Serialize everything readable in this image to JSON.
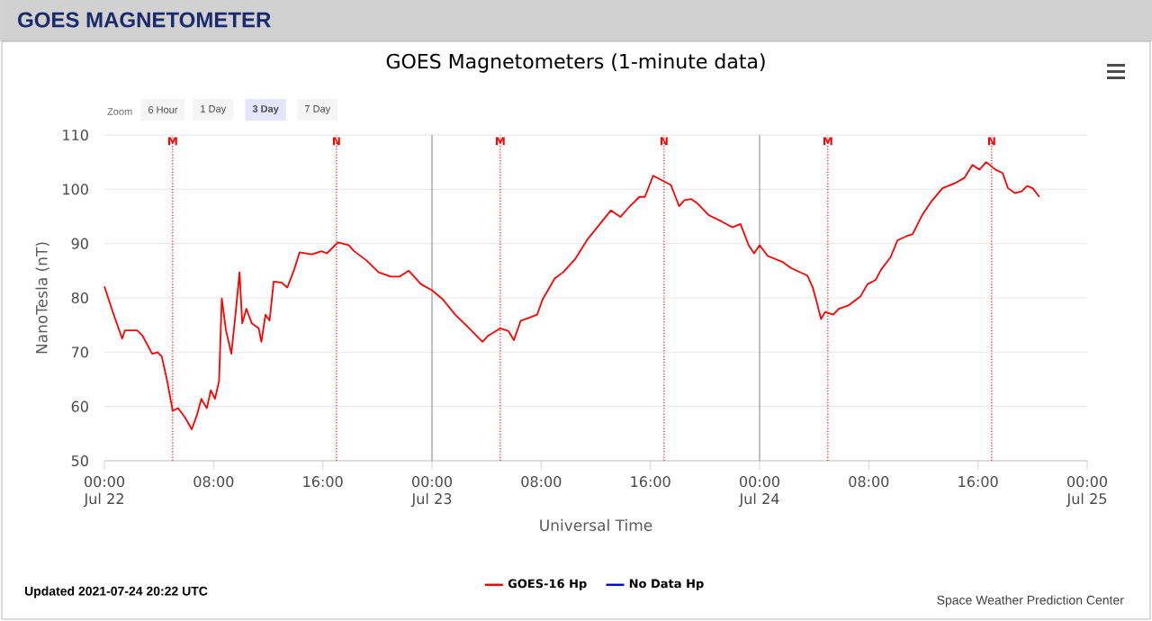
{
  "chart_data": {
    "type": "line",
    "title": "GOES MAGNETOMETER",
    "subtitle": "GOES Magnetometers (1-minute data)",
    "xlabel": "Universal Time",
    "ylabel": "NanoTesla (nT)",
    "xlim": [
      "2021-07-22T00:00",
      "2021-07-25T00:00"
    ],
    "ylim": [
      50,
      110
    ],
    "xticks": [
      {
        "value": "2021-07-22T00:00",
        "label": "00:00 Jul 22"
      },
      {
        "value": "2021-07-22T08:00",
        "label": "08:00"
      },
      {
        "value": "2021-07-22T16:00",
        "label": "16:00"
      },
      {
        "value": "2021-07-23T00:00",
        "label": "00:00 Jul 23"
      },
      {
        "value": "2021-07-23T08:00",
        "label": "08:00"
      },
      {
        "value": "2021-07-23T16:00",
        "label": "16:00"
      },
      {
        "value": "2021-07-24T00:00",
        "label": "00:00 Jul 24"
      },
      {
        "value": "2021-07-24T08:00",
        "label": "08:00"
      },
      {
        "value": "2021-07-24T16:00",
        "label": "16:00"
      },
      {
        "value": "2021-07-25T00:00",
        "label": "00:00 Jul 25"
      }
    ],
    "yticks": [
      50,
      60,
      70,
      80,
      90,
      100,
      110
    ],
    "grid": "y",
    "legend": "bottom",
    "marker": "none",
    "line_style": "solid",
    "series": [
      {
        "name": "GOES-16 Hp",
        "color": "#ff0000",
        "x": [
          "2021-07-22T00:00",
          "2021-07-22T00:36",
          "2021-07-22T01:18",
          "2021-07-22T01:30",
          "2021-07-22T02:24",
          "2021-07-22T02:48",
          "2021-07-22T03:30",
          "2021-07-22T03:54",
          "2021-07-22T04:12",
          "2021-07-22T04:36",
          "2021-07-22T05:00",
          "2021-07-22T05:24",
          "2021-07-22T05:54",
          "2021-07-22T06:24",
          "2021-07-22T06:48",
          "2021-07-22T07:06",
          "2021-07-22T07:30",
          "2021-07-22T07:48",
          "2021-07-22T08:06",
          "2021-07-22T08:24",
          "2021-07-22T08:36",
          "2021-07-22T08:54",
          "2021-07-22T09:18",
          "2021-07-22T09:36",
          "2021-07-22T09:54",
          "2021-07-22T10:06",
          "2021-07-22T10:24",
          "2021-07-22T10:48",
          "2021-07-22T11:18",
          "2021-07-22T11:30",
          "2021-07-22T11:48",
          "2021-07-22T12:06",
          "2021-07-22T12:24",
          "2021-07-22T13:00",
          "2021-07-22T13:24",
          "2021-07-22T13:54",
          "2021-07-22T14:18",
          "2021-07-22T15:12",
          "2021-07-22T15:54",
          "2021-07-22T16:18",
          "2021-07-22T17:06",
          "2021-07-22T17:54",
          "2021-07-22T18:18",
          "2021-07-22T19:12",
          "2021-07-22T20:06",
          "2021-07-22T21:00",
          "2021-07-22T21:36",
          "2021-07-22T22:18",
          "2021-07-22T23:12",
          "2021-07-23T00:00",
          "2021-07-23T00:48",
          "2021-07-23T01:42",
          "2021-07-23T02:36",
          "2021-07-23T03:42",
          "2021-07-23T04:06",
          "2021-07-23T05:00",
          "2021-07-23T05:36",
          "2021-07-23T06:00",
          "2021-07-23T06:30",
          "2021-07-23T07:12",
          "2021-07-23T07:42",
          "2021-07-23T08:06",
          "2021-07-23T09:00",
          "2021-07-23T09:36",
          "2021-07-23T10:30",
          "2021-07-23T11:24",
          "2021-07-23T12:18",
          "2021-07-23T13:06",
          "2021-07-23T13:48",
          "2021-07-23T14:30",
          "2021-07-23T15:12",
          "2021-07-23T15:36",
          "2021-07-23T16:12",
          "2021-07-23T16:48",
          "2021-07-23T17:30",
          "2021-07-23T18:06",
          "2021-07-23T18:30",
          "2021-07-23T19:00",
          "2021-07-23T19:24",
          "2021-07-23T20:18",
          "2021-07-23T21:12",
          "2021-07-23T22:00",
          "2021-07-23T22:36",
          "2021-07-23T23:12",
          "2021-07-23T23:36",
          "2021-07-24T00:00",
          "2021-07-24T00:36",
          "2021-07-24T01:42",
          "2021-07-24T02:18",
          "2021-07-24T03:30",
          "2021-07-24T03:54",
          "2021-07-24T04:12",
          "2021-07-24T04:30",
          "2021-07-24T04:48",
          "2021-07-24T05:24",
          "2021-07-24T05:48",
          "2021-07-24T06:30",
          "2021-07-24T07:24",
          "2021-07-24T07:54",
          "2021-07-24T08:30",
          "2021-07-24T08:54",
          "2021-07-24T09:36",
          "2021-07-24T10:06",
          "2021-07-24T10:48",
          "2021-07-24T11:12",
          "2021-07-24T11:54",
          "2021-07-24T12:36",
          "2021-07-24T13:24",
          "2021-07-24T14:18",
          "2021-07-24T15:00",
          "2021-07-24T15:36",
          "2021-07-24T16:06",
          "2021-07-24T16:36",
          "2021-07-24T17:18",
          "2021-07-24T17:48",
          "2021-07-24T18:12",
          "2021-07-24T18:42",
          "2021-07-24T19:12",
          "2021-07-24T19:36",
          "2021-07-24T20:00",
          "2021-07-24T20:30"
        ],
        "values": [
          82.1,
          77.5,
          72.5,
          74,
          74,
          73,
          69.7,
          70,
          69.2,
          64.7,
          59.2,
          59.7,
          58,
          55.8,
          58.6,
          61.4,
          59.7,
          63,
          61.4,
          64.7,
          79.9,
          74.1,
          69.7,
          76.9,
          84.7,
          75.3,
          78,
          75.3,
          74.4,
          71.9,
          76.9,
          75.8,
          83,
          82.8,
          81.9,
          85.2,
          88.4,
          88,
          88.6,
          88.2,
          90.2,
          89.7,
          88.6,
          86.9,
          84.7,
          83.9,
          83.9,
          85,
          82.5,
          81.4,
          79.7,
          76.9,
          74.7,
          71.9,
          73,
          74.4,
          73.9,
          72.2,
          75.8,
          76.4,
          76.9,
          79.7,
          83.6,
          84.7,
          87.2,
          90.8,
          93.6,
          96.1,
          94.9,
          96.9,
          98.6,
          98.6,
          102.5,
          101.7,
          100.8,
          96.9,
          98,
          98.2,
          97.5,
          95.2,
          94.1,
          93,
          93.6,
          89.7,
          88.2,
          89.7,
          87.7,
          86.6,
          85.5,
          84.1,
          81.9,
          79.1,
          76.1,
          77.4,
          76.9,
          78,
          78.6,
          80.3,
          82.5,
          83.3,
          85.2,
          87.5,
          90.6,
          91.4,
          91.7,
          95.2,
          97.8,
          100.2,
          101.1,
          102.1,
          104.5,
          103.6,
          105,
          103.6,
          103,
          100.2,
          99.3,
          99.6,
          100.6,
          100.2,
          98.6
        ]
      },
      {
        "name": "No Data Hp",
        "color": "#0000ff"
      }
    ],
    "ref_lines": [
      {
        "axis": "x",
        "value": "2021-07-22T05:00",
        "label": "M",
        "color": "#ff0000",
        "line_style": "dotted"
      },
      {
        "axis": "x",
        "value": "2021-07-22T17:00",
        "label": "N",
        "color": "#ff0000",
        "line_style": "dotted"
      },
      {
        "axis": "x",
        "value": "2021-07-23T00:00",
        "label": null,
        "color": "#999999",
        "line_style": "solid"
      },
      {
        "axis": "x",
        "value": "2021-07-23T05:00",
        "label": "M",
        "color": "#ff0000",
        "line_style": "dotted"
      },
      {
        "axis": "x",
        "value": "2021-07-23T17:00",
        "label": "N",
        "color": "#ff0000",
        "line_style": "dotted"
      },
      {
        "axis": "x",
        "value": "2021-07-24T00:00",
        "label": null,
        "color": "#999999",
        "line_style": "solid"
      },
      {
        "axis": "x",
        "value": "2021-07-24T05:00",
        "label": "M",
        "color": "#ff0000",
        "line_style": "dotted"
      },
      {
        "axis": "x",
        "value": "2021-07-24T17:00",
        "label": "N",
        "color": "#ff0000",
        "line_style": "dotted"
      }
    ],
    "annotations": [
      "Zoom",
      "6 Hour",
      "1 Day",
      "3 Day",
      "7 Day",
      "Updated 2021-07-24 20:22 UTC",
      "Space Weather Prediction Center"
    ]
  }
}
